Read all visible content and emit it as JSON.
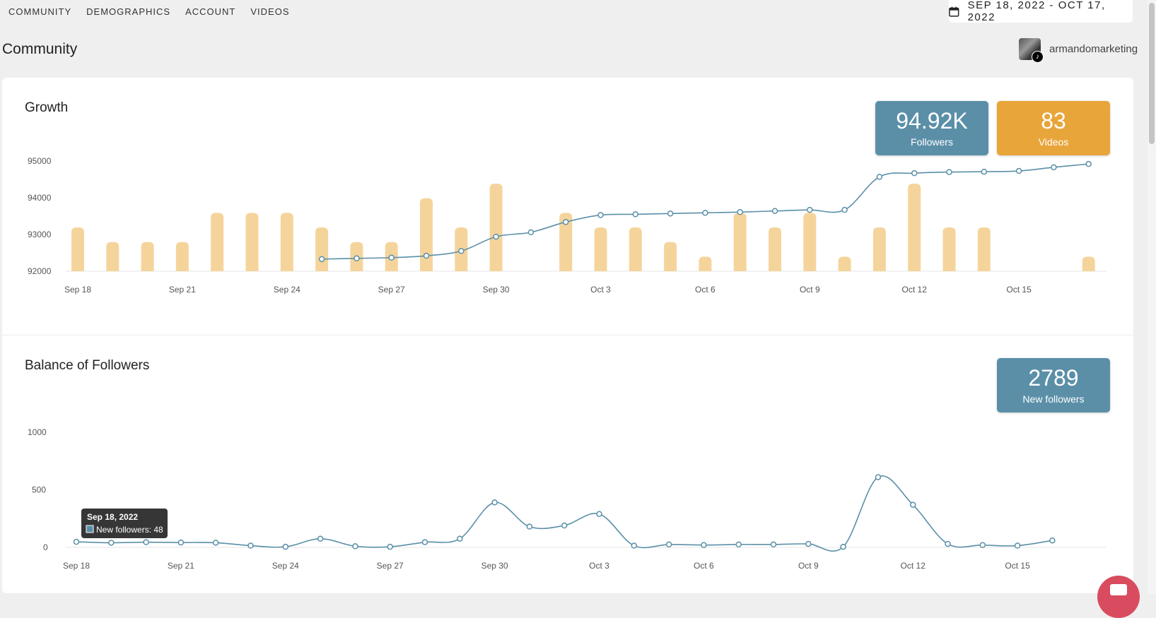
{
  "nav": {
    "items": [
      {
        "label": "COMMUNITY"
      },
      {
        "label": "DEMOGRAPHICS"
      },
      {
        "label": "ACCOUNT"
      },
      {
        "label": "VIDEOS"
      }
    ]
  },
  "date_range": "SEP 18, 2022 - OCT 17, 2022",
  "page_title": "Community",
  "account": {
    "name": "armandomarketing",
    "avatar_badge_icon": "tiktok-icon"
  },
  "growth": {
    "title": "Growth",
    "stats": {
      "followers": {
        "value": "94.92K",
        "label": "Followers"
      },
      "videos": {
        "value": "83",
        "label": "Videos"
      }
    }
  },
  "balance": {
    "title": "Balance of Followers",
    "stats": {
      "new_followers": {
        "value": "2789",
        "label": "New followers"
      }
    },
    "tooltip": {
      "title": "Sep 18, 2022",
      "text": "New followers: 48"
    }
  },
  "colors": {
    "accent_blue": "#5b8fa8",
    "accent_orange": "#e8a53a",
    "bar_fill": "#f5d49c"
  },
  "chart_data": [
    {
      "type": "bar",
      "title": "Growth",
      "x": [
        "Sep 18",
        "Sep 19",
        "Sep 20",
        "Sep 21",
        "Sep 22",
        "Sep 23",
        "Sep 24",
        "Sep 25",
        "Sep 26",
        "Sep 27",
        "Sep 28",
        "Sep 29",
        "Sep 30",
        "Oct 1",
        "Oct 2",
        "Oct 3",
        "Oct 4",
        "Oct 5",
        "Oct 6",
        "Oct 7",
        "Oct 8",
        "Oct 9",
        "Oct 10",
        "Oct 11",
        "Oct 12",
        "Oct 13",
        "Oct 14",
        "Oct 15",
        "Oct 16",
        "Oct 17"
      ],
      "xticks": [
        "Sep 18",
        "Sep 21",
        "Sep 24",
        "Sep 27",
        "Sep 30",
        "Oct 3",
        "Oct 6",
        "Oct 9",
        "Oct 12",
        "Oct 15"
      ],
      "yticks": [
        92000,
        93000,
        94000,
        95000
      ],
      "ylim": [
        92000,
        95000
      ],
      "series": [
        {
          "kind": "bar",
          "values": [
            3,
            2,
            2,
            2,
            4,
            4,
            4,
            3,
            2,
            2,
            5,
            3,
            6,
            0,
            4,
            3,
            3,
            2,
            1,
            4,
            3,
            4,
            1,
            3,
            6,
            3,
            3,
            0,
            0,
            1
          ]
        },
        {
          "kind": "line",
          "values": [
            null,
            null,
            null,
            null,
            null,
            null,
            null,
            92330,
            92350,
            92370,
            92420,
            92550,
            92940,
            93060,
            93340,
            93530,
            93550,
            93570,
            93590,
            93610,
            93640,
            93670,
            93670,
            94570,
            94670,
            94700,
            94710,
            94730,
            94830,
            94920
          ]
        }
      ]
    },
    {
      "type": "line",
      "title": "Balance of Followers",
      "x": [
        "Sep 18",
        "Sep 19",
        "Sep 20",
        "Sep 21",
        "Sep 22",
        "Sep 23",
        "Sep 24",
        "Sep 25",
        "Sep 26",
        "Sep 27",
        "Sep 28",
        "Sep 29",
        "Sep 30",
        "Oct 1",
        "Oct 2",
        "Oct 3",
        "Oct 4",
        "Oct 5",
        "Oct 6",
        "Oct 7",
        "Oct 8",
        "Oct 9",
        "Oct 10",
        "Oct 11",
        "Oct 12",
        "Oct 13",
        "Oct 14",
        "Oct 15",
        "Oct 16"
      ],
      "xticks": [
        "Sep 18",
        "Sep 21",
        "Sep 24",
        "Sep 27",
        "Sep 30",
        "Oct 3",
        "Oct 6",
        "Oct 9",
        "Oct 12",
        "Oct 15"
      ],
      "yticks": [
        0,
        500,
        1000
      ],
      "ylim": [
        0,
        1000
      ],
      "series": [
        {
          "name": "New followers",
          "values": [
            48,
            40,
            45,
            42,
            40,
            15,
            5,
            75,
            10,
            5,
            45,
            75,
            390,
            180,
            190,
            290,
            15,
            25,
            20,
            25,
            25,
            30,
            5,
            610,
            370,
            30,
            20,
            15,
            60
          ]
        }
      ]
    }
  ]
}
